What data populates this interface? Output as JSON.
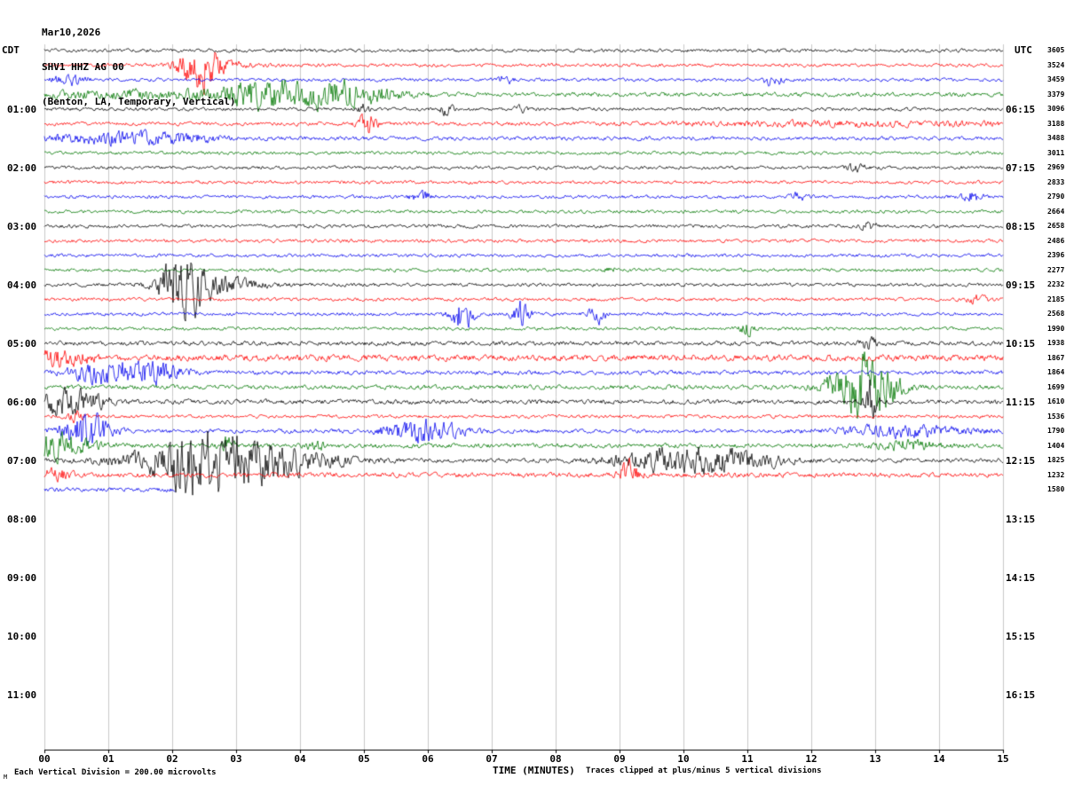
{
  "header": {
    "date": "Mar10,2026",
    "station": "SHV1 HHZ AG 00",
    "location": "(Benton, LA, Temporary, Vertical)",
    "left_tz": "CDT",
    "right_tz": "UTC"
  },
  "footer": {
    "x_axis_label": "TIME (MINUTES)",
    "scale_note": "Each Vertical Division =  200.00 microvolts",
    "clip_note": "Traces clipped at plus/minus 5 vertical divisions",
    "watermark": "M"
  },
  "chart_data": {
    "type": "line",
    "subtype": "seismogram-helicorder",
    "title": "SHV1 HHZ AG 00 (Benton, LA, Temporary, Vertical) Mar10,2026",
    "x_axis": {
      "label": "TIME (MINUTES)",
      "min": 0,
      "max": 15,
      "ticks": [
        "00",
        "01",
        "02",
        "03",
        "04",
        "05",
        "06",
        "07",
        "08",
        "09",
        "10",
        "11",
        "12",
        "13",
        "14",
        "15"
      ]
    },
    "minutes_per_row": 15,
    "row_count_total": 48,
    "clip_divisions": 5,
    "microvolts_per_division": 200.0,
    "grid": true,
    "trace_colors": {
      "black": "#000000",
      "red": "#ff0000",
      "blue": "#0000ee",
      "green": "#007700"
    },
    "left_time_labels": [
      {
        "row": 4,
        "label": "01:00"
      },
      {
        "row": 8,
        "label": "02:00"
      },
      {
        "row": 12,
        "label": "03:00"
      },
      {
        "row": 16,
        "label": "04:00"
      },
      {
        "row": 20,
        "label": "05:00"
      },
      {
        "row": 24,
        "label": "06:00"
      },
      {
        "row": 28,
        "label": "07:00"
      },
      {
        "row": 32,
        "label": "08:00"
      },
      {
        "row": 36,
        "label": "09:00"
      },
      {
        "row": 40,
        "label": "10:00"
      },
      {
        "row": 44,
        "label": "11:00"
      }
    ],
    "right_time_labels": [
      {
        "row": 4,
        "label": "06:15"
      },
      {
        "row": 8,
        "label": "07:15"
      },
      {
        "row": 12,
        "label": "08:15"
      },
      {
        "row": 16,
        "label": "09:15"
      },
      {
        "row": 20,
        "label": "10:15"
      },
      {
        "row": 24,
        "label": "11:15"
      },
      {
        "row": 28,
        "label": "12:15"
      },
      {
        "row": 32,
        "label": "13:15"
      },
      {
        "row": 36,
        "label": "14:15"
      },
      {
        "row": 40,
        "label": "15:15"
      },
      {
        "row": 44,
        "label": "16:15"
      }
    ],
    "right_amplitude_column": [
      "3605",
      "3524",
      "3459",
      "3379",
      "3096",
      "3188",
      "3488",
      "3011",
      "2969",
      "2833",
      "2790",
      "2664",
      "2658",
      "2486",
      "2396",
      "2277",
      "2232",
      "2185",
      "2568",
      "1990",
      "1938",
      "1867",
      "1864",
      "1699",
      "1610",
      "1536",
      "1790",
      "1404",
      "1825",
      "1232",
      "1580"
    ],
    "rows": [
      {
        "start_cdt": "00:00",
        "color": "black"
      },
      {
        "start_cdt": "00:15",
        "color": "red"
      },
      {
        "start_cdt": "00:30",
        "color": "blue"
      },
      {
        "start_cdt": "00:45",
        "color": "green",
        "base": 1.8
      },
      {
        "start_cdt": "01:00",
        "color": "black"
      },
      {
        "start_cdt": "01:15",
        "color": "red",
        "base": 1.5
      },
      {
        "start_cdt": "01:30",
        "color": "blue",
        "base": 1.6
      },
      {
        "start_cdt": "01:45",
        "color": "green"
      },
      {
        "start_cdt": "02:00",
        "color": "black"
      },
      {
        "start_cdt": "02:15",
        "color": "red"
      },
      {
        "start_cdt": "02:30",
        "color": "blue"
      },
      {
        "start_cdt": "02:45",
        "color": "green"
      },
      {
        "start_cdt": "03:00",
        "color": "black"
      },
      {
        "start_cdt": "03:15",
        "color": "red"
      },
      {
        "start_cdt": "03:30",
        "color": "blue"
      },
      {
        "start_cdt": "03:45",
        "color": "green"
      },
      {
        "start_cdt": "04:00",
        "color": "black"
      },
      {
        "start_cdt": "04:15",
        "color": "red"
      },
      {
        "start_cdt": "04:30",
        "color": "blue"
      },
      {
        "start_cdt": "04:45",
        "color": "green"
      },
      {
        "start_cdt": "05:00",
        "color": "black",
        "base": 1.8
      },
      {
        "start_cdt": "05:15",
        "color": "red",
        "base": 2.6
      },
      {
        "start_cdt": "05:30",
        "color": "blue",
        "base": 1.8
      },
      {
        "start_cdt": "05:45",
        "color": "green",
        "base": 1.8
      },
      {
        "start_cdt": "06:00",
        "color": "black",
        "base": 1.9
      },
      {
        "start_cdt": "06:15",
        "color": "red"
      },
      {
        "start_cdt": "06:30",
        "color": "blue",
        "base": 1.7
      },
      {
        "start_cdt": "06:45",
        "color": "green",
        "base": 1.9
      },
      {
        "start_cdt": "07:00",
        "color": "black",
        "base": 1.8
      },
      {
        "start_cdt": "07:15",
        "color": "red",
        "base": 2.0
      },
      {
        "start_cdt": "07:30",
        "color": "blue",
        "base": 1.8,
        "end_min": 2.05
      }
    ],
    "events": [
      {
        "row": 1,
        "m": 2.4,
        "w": 0.18,
        "a": 16
      },
      {
        "row": 1,
        "m": 2.65,
        "w": 0.35,
        "a": 5
      },
      {
        "row": 2,
        "m": 0.4,
        "w": 0.2,
        "a": 4
      },
      {
        "row": 2,
        "m": 7.2,
        "w": 0.1,
        "a": 3.5
      },
      {
        "row": 2,
        "m": 11.4,
        "w": 0.1,
        "a": 5
      },
      {
        "row": 3,
        "m": 1.6,
        "w": 1.4,
        "a": 3
      },
      {
        "row": 3,
        "m": 3.3,
        "w": 0.25,
        "a": 5
      },
      {
        "row": 3,
        "m": 3.9,
        "w": 0.7,
        "a": 8
      },
      {
        "row": 3,
        "m": 4.85,
        "w": 0.45,
        "a": 7
      },
      {
        "row": 4,
        "m": 5.0,
        "w": 0.07,
        "a": 4
      },
      {
        "row": 4,
        "m": 6.3,
        "w": 0.07,
        "a": 5
      },
      {
        "row": 4,
        "m": 7.45,
        "w": 0.07,
        "a": 3
      },
      {
        "row": 5,
        "m": 5.05,
        "w": 0.1,
        "a": 9
      },
      {
        "row": 5,
        "m": 12.8,
        "w": 2.0,
        "a": 1.6
      },
      {
        "row": 6,
        "m": 0.9,
        "w": 0.8,
        "a": 4
      },
      {
        "row": 6,
        "m": 2.1,
        "w": 0.5,
        "a": 3
      },
      {
        "row": 8,
        "m": 12.7,
        "w": 0.1,
        "a": 3
      },
      {
        "row": 10,
        "m": 5.9,
        "w": 0.12,
        "a": 4
      },
      {
        "row": 10,
        "m": 11.8,
        "w": 0.1,
        "a": 3.5
      },
      {
        "row": 10,
        "m": 14.5,
        "w": 0.12,
        "a": 4
      },
      {
        "row": 12,
        "m": 12.9,
        "w": 0.1,
        "a": 3
      },
      {
        "row": 15,
        "m": 8.9,
        "w": 0.08,
        "a": 3
      },
      {
        "row": 16,
        "m": 2.15,
        "w": 0.22,
        "a": 24
      },
      {
        "row": 16,
        "m": 2.55,
        "w": 0.5,
        "a": 8
      },
      {
        "row": 17,
        "m": 14.6,
        "w": 0.1,
        "a": 4
      },
      {
        "row": 18,
        "m": 6.55,
        "w": 0.12,
        "a": 13
      },
      {
        "row": 18,
        "m": 7.45,
        "w": 0.1,
        "a": 10
      },
      {
        "row": 18,
        "m": 8.65,
        "w": 0.09,
        "a": 8
      },
      {
        "row": 19,
        "m": 11.0,
        "w": 0.07,
        "a": 6
      },
      {
        "row": 20,
        "m": 12.9,
        "w": 0.1,
        "a": 4
      },
      {
        "row": 21,
        "m": 0.3,
        "w": 0.3,
        "a": 6
      },
      {
        "row": 22,
        "m": 0.8,
        "w": 0.3,
        "a": 5
      },
      {
        "row": 22,
        "m": 1.45,
        "w": 0.45,
        "a": 10
      },
      {
        "row": 23,
        "m": 12.3,
        "w": 0.2,
        "a": 5
      },
      {
        "row": 23,
        "m": 12.9,
        "w": 0.3,
        "a": 27
      },
      {
        "row": 24,
        "m": 0.15,
        "w": 0.12,
        "a": 6
      },
      {
        "row": 24,
        "m": 0.45,
        "w": 0.35,
        "a": 9
      },
      {
        "row": 24,
        "m": 12.92,
        "w": 0.08,
        "a": 18
      },
      {
        "row": 25,
        "m": 0.5,
        "w": 0.1,
        "a": 4
      },
      {
        "row": 26,
        "m": 0.65,
        "w": 0.25,
        "a": 16
      },
      {
        "row": 26,
        "m": 5.9,
        "w": 0.4,
        "a": 9
      },
      {
        "row": 26,
        "m": 13.4,
        "w": 0.7,
        "a": 4.5
      },
      {
        "row": 27,
        "m": 0.2,
        "w": 0.35,
        "a": 11
      },
      {
        "row": 27,
        "m": 2.85,
        "w": 0.08,
        "a": 6
      },
      {
        "row": 27,
        "m": 4.25,
        "w": 0.08,
        "a": 5
      },
      {
        "row": 27,
        "m": 13.5,
        "w": 0.3,
        "a": 4
      },
      {
        "row": 28,
        "m": 2.3,
        "w": 0.3,
        "a": 12
      },
      {
        "row": 28,
        "m": 2.9,
        "w": 0.9,
        "a": 21
      },
      {
        "row": 28,
        "m": 9.7,
        "w": 0.6,
        "a": 8
      },
      {
        "row": 28,
        "m": 10.8,
        "w": 0.5,
        "a": 8
      },
      {
        "row": 29,
        "m": 0.2,
        "w": 0.15,
        "a": 5
      },
      {
        "row": 29,
        "m": 9.15,
        "w": 0.12,
        "a": 10
      }
    ]
  }
}
